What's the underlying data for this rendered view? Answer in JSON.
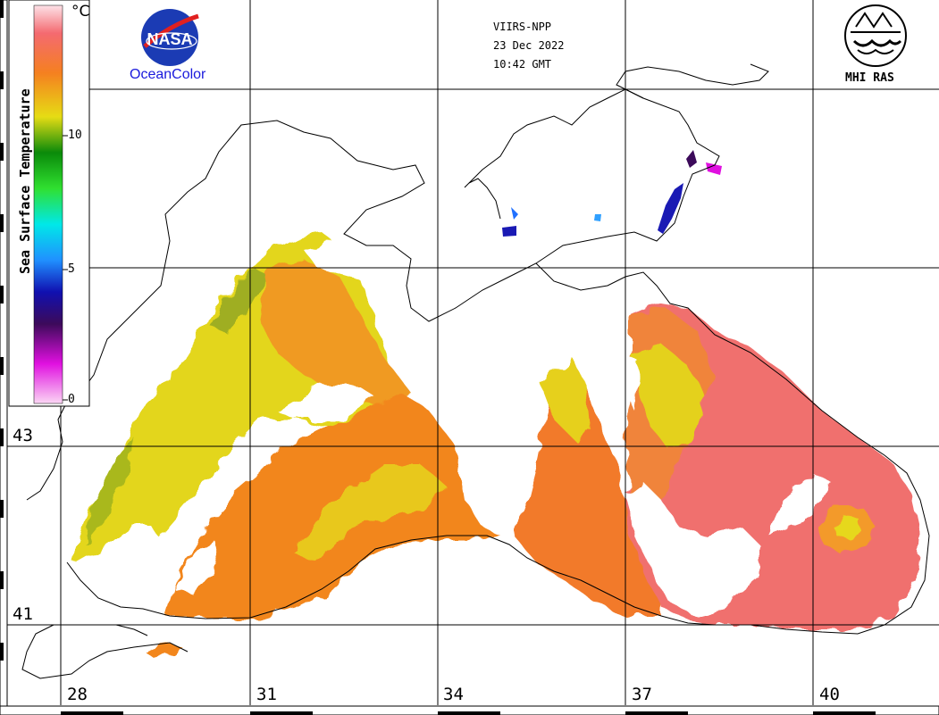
{
  "header": {
    "sensor": "VIIRS-NPP",
    "date": "23 Dec 2022",
    "time": "10:42 GMT"
  },
  "logos": {
    "nasa": {
      "text": "NASA",
      "caption": "OceanColor"
    },
    "mhi": {
      "text": "MHI RAS"
    }
  },
  "scale": {
    "title": "Sea Surface Temperature",
    "unit": "°C",
    "ticks": [
      "10",
      "5",
      "0"
    ],
    "range": [
      0,
      15
    ]
  },
  "grid": {
    "latitudes": [
      "43",
      "41"
    ],
    "longitudes": [
      "28",
      "31",
      "34",
      "37",
      "40"
    ]
  },
  "colors": {
    "land": "#ffffff",
    "coastline": "#000000",
    "grid": "#000000",
    "sst_warm_pink": "#f07070",
    "sst_orange": "#f58a1e",
    "sst_yellow": "#e6dc14",
    "sst_cold_blue": "#1a1ab4"
  }
}
